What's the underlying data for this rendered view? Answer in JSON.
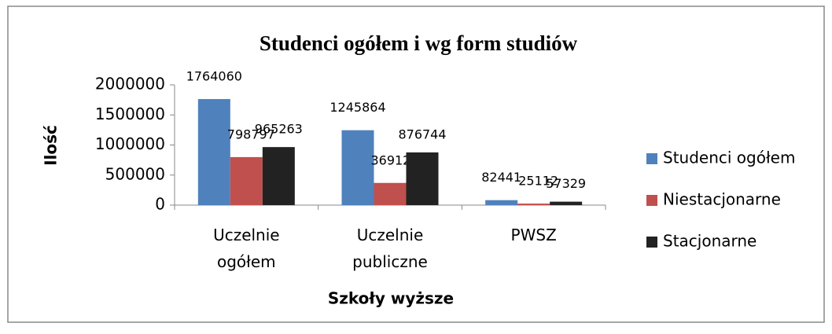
{
  "chart_data": {
    "type": "bar",
    "title": "Studenci ogółem i wg form studiów",
    "xlabel": "Szkoły wyższe",
    "ylabel": "Ilość",
    "categories": [
      "Uczelnie ogółem",
      "Uczelnie publiczne",
      "PWSZ"
    ],
    "series": [
      {
        "name": "Studenci ogółem",
        "color": "#4f81bd",
        "values": [
          1764060,
          1245864,
          82441
        ]
      },
      {
        "name": "Niestacjonarne",
        "color": "#c0504d",
        "values": [
          798797,
          369120,
          25112
        ]
      },
      {
        "name": "Stacjonarne",
        "color": "#222222",
        "values": [
          965263,
          876744,
          57329
        ]
      }
    ],
    "ylim": [
      0,
      2000000
    ],
    "yticks": [
      0,
      500000,
      1000000,
      1500000,
      2000000
    ],
    "legend": "right"
  }
}
